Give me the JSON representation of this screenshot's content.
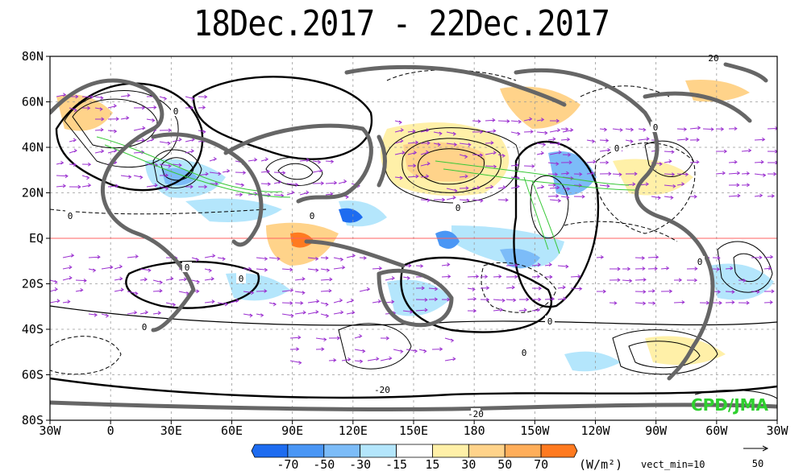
{
  "title": "18Dec.2017 - 22Dec.2017",
  "map": {
    "lat_labels": [
      "80N",
      "60N",
      "40N",
      "20N",
      "EQ",
      "20S",
      "40S",
      "60S",
      "80S"
    ],
    "lon_labels": [
      "30W",
      "0",
      "30E",
      "60E",
      "90E",
      "120E",
      "150E",
      "180",
      "150W",
      "120W",
      "90W",
      "60W",
      "30W"
    ],
    "contour_labels": [
      "0",
      "0",
      "0",
      "0",
      "0",
      "0",
      "0",
      "0",
      "0",
      "0",
      "0",
      "0",
      "-20",
      "-20",
      "20"
    ],
    "equator_color": "#ff6060",
    "coast_color": "#666666",
    "vector_color": "#9b30d0",
    "flow_color": "#37c837"
  },
  "colorbar": {
    "labels": [
      "-70",
      "-50",
      "-30",
      "-15",
      "15",
      "30",
      "50",
      "70"
    ],
    "colors": [
      "#1e6cf0",
      "#4a96f5",
      "#7cbcf8",
      "#b4e6fc",
      "#ffffff",
      "#fff0a8",
      "#ffd38a",
      "#ffae5a",
      "#ff7a20"
    ],
    "unit": "(W/m²)",
    "vect_label": "vect_min=10",
    "ref_vector_value": "50"
  },
  "credit": "CPD/JMA"
}
